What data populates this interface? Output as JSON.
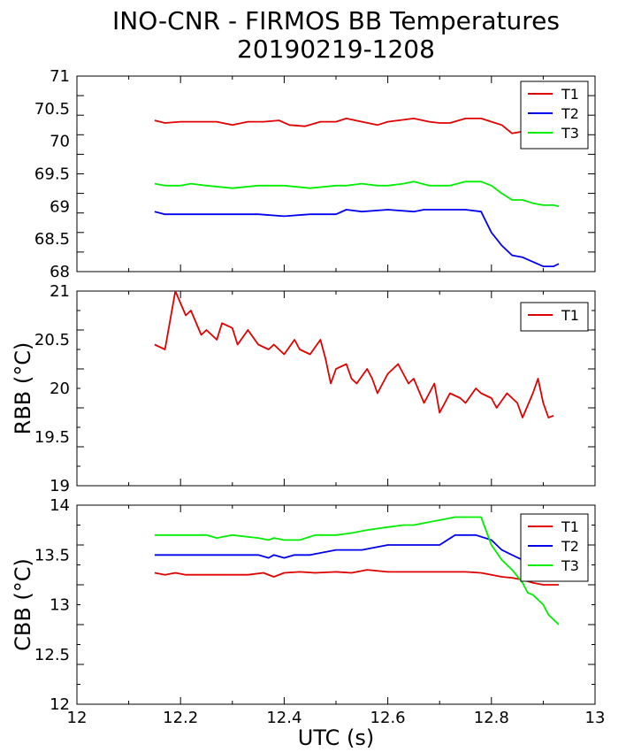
{
  "figure": {
    "title": "INO-CNR - FIRMOS BB Temperatures",
    "subtitle": "20190219-1208"
  },
  "chart_data": [
    {
      "type": "line",
      "xlim": [
        12,
        13
      ],
      "ylim": [
        68,
        71
      ],
      "ylabel": "",
      "y_ticks": [
        "68",
        "68.5",
        "69",
        "69.5",
        "70",
        "70.5",
        "71"
      ],
      "legend": "top-right",
      "series": [
        {
          "name": "T1",
          "color": "#e00000",
          "x": [
            12.15,
            12.17,
            12.2,
            12.22,
            12.25,
            12.27,
            12.3,
            12.33,
            12.36,
            12.39,
            12.41,
            12.44,
            12.47,
            12.5,
            12.52,
            12.55,
            12.58,
            12.6,
            12.62,
            12.65,
            12.68,
            12.7,
            12.72,
            12.75,
            12.78,
            12.8,
            12.82,
            12.84,
            12.86,
            12.88,
            12.9,
            12.92,
            12.93
          ],
          "y": [
            70.32,
            70.28,
            70.3,
            70.3,
            70.3,
            70.3,
            70.25,
            70.3,
            70.3,
            70.32,
            70.25,
            70.23,
            70.3,
            70.3,
            70.35,
            70.3,
            70.25,
            70.3,
            70.32,
            70.35,
            70.3,
            70.28,
            70.28,
            70.35,
            70.35,
            70.3,
            70.25,
            70.12,
            70.15,
            70.12,
            70.15,
            70.2,
            70.28
          ]
        },
        {
          "name": "T2",
          "color": "#0000ee",
          "x": [
            12.15,
            12.17,
            12.2,
            12.25,
            12.3,
            12.35,
            12.4,
            12.45,
            12.5,
            12.52,
            12.55,
            12.6,
            12.65,
            12.67,
            12.7,
            12.75,
            12.78,
            12.8,
            12.82,
            12.84,
            12.86,
            12.88,
            12.9,
            12.92,
            12.93
          ],
          "y": [
            68.92,
            68.88,
            68.88,
            68.88,
            68.88,
            68.88,
            68.85,
            68.88,
            68.88,
            68.95,
            68.92,
            68.95,
            68.92,
            68.95,
            68.95,
            68.95,
            68.92,
            68.6,
            68.4,
            68.25,
            68.22,
            68.15,
            68.08,
            68.08,
            68.12
          ]
        },
        {
          "name": "T3",
          "color": "#00ee00",
          "x": [
            12.15,
            12.17,
            12.2,
            12.22,
            12.25,
            12.3,
            12.35,
            12.4,
            12.45,
            12.5,
            12.52,
            12.55,
            12.58,
            12.6,
            12.63,
            12.65,
            12.68,
            12.7,
            12.72,
            12.75,
            12.78,
            12.8,
            12.82,
            12.84,
            12.86,
            12.88,
            12.9,
            12.92,
            12.93
          ],
          "y": [
            69.35,
            69.32,
            69.32,
            69.35,
            69.32,
            69.28,
            69.32,
            69.32,
            69.28,
            69.32,
            69.32,
            69.35,
            69.32,
            69.32,
            69.35,
            69.38,
            69.32,
            69.32,
            69.32,
            69.38,
            69.38,
            69.32,
            69.2,
            69.1,
            69.1,
            69.05,
            69.02,
            69.02,
            69.0
          ]
        }
      ]
    },
    {
      "type": "line",
      "xlim": [
        12,
        13
      ],
      "ylim": [
        19,
        21
      ],
      "ylabel": "RBB (°C)",
      "y_ticks": [
        "19",
        "19.5",
        "20",
        "20.5",
        "21"
      ],
      "legend": "top-right",
      "series": [
        {
          "name": "T1",
          "color": "#e00000",
          "x": [
            12.15,
            12.17,
            12.19,
            12.21,
            12.22,
            12.24,
            12.25,
            12.27,
            12.28,
            12.3,
            12.31,
            12.33,
            12.35,
            12.37,
            12.38,
            12.4,
            12.42,
            12.43,
            12.45,
            12.47,
            12.48,
            12.49,
            12.5,
            12.52,
            12.53,
            12.54,
            12.56,
            12.57,
            12.58,
            12.6,
            12.62,
            12.64,
            12.65,
            12.67,
            12.69,
            12.7,
            12.72,
            12.74,
            12.75,
            12.77,
            12.78,
            12.8,
            12.81,
            12.83,
            12.85,
            12.86,
            12.88,
            12.89,
            12.9,
            12.91,
            12.92
          ],
          "y": [
            20.45,
            20.4,
            21.0,
            20.75,
            20.8,
            20.55,
            20.6,
            20.5,
            20.67,
            20.62,
            20.45,
            20.6,
            20.45,
            20.4,
            20.45,
            20.35,
            20.5,
            20.4,
            20.35,
            20.5,
            20.3,
            20.05,
            20.2,
            20.25,
            20.1,
            20.05,
            20.2,
            20.1,
            19.95,
            20.15,
            20.25,
            20.05,
            20.1,
            19.85,
            20.05,
            19.75,
            19.95,
            19.9,
            19.85,
            20.0,
            19.95,
            19.9,
            19.8,
            19.95,
            19.85,
            19.7,
            19.95,
            20.1,
            19.85,
            19.7,
            19.72
          ]
        }
      ]
    },
    {
      "type": "line",
      "xlim": [
        12,
        13
      ],
      "ylim": [
        12,
        14
      ],
      "xlabel": "UTC (s)",
      "ylabel": "CBB (°C)",
      "x_ticks": [
        "12",
        "12.2",
        "12.4",
        "12.6",
        "12.8",
        "13"
      ],
      "y_ticks": [
        "12",
        "12.5",
        "13",
        "13.5",
        "14"
      ],
      "legend": "top-right",
      "series": [
        {
          "name": "T1",
          "color": "#e00000",
          "x": [
            12.15,
            12.17,
            12.19,
            12.21,
            12.25,
            12.3,
            12.33,
            12.36,
            12.38,
            12.4,
            12.43,
            12.46,
            12.5,
            12.53,
            12.56,
            12.6,
            12.65,
            12.7,
            12.75,
            12.78,
            12.8,
            12.82,
            12.84,
            12.86,
            12.88,
            12.9,
            12.92,
            12.93
          ],
          "y": [
            13.32,
            13.3,
            13.32,
            13.3,
            13.3,
            13.3,
            13.3,
            13.32,
            13.28,
            13.32,
            13.33,
            13.32,
            13.33,
            13.32,
            13.35,
            13.33,
            13.33,
            13.33,
            13.33,
            13.32,
            13.3,
            13.28,
            13.27,
            13.25,
            13.22,
            13.2,
            13.2,
            13.2
          ]
        },
        {
          "name": "T2",
          "color": "#0000ee",
          "x": [
            12.15,
            12.2,
            12.25,
            12.3,
            12.35,
            12.37,
            12.38,
            12.4,
            12.42,
            12.45,
            12.5,
            12.55,
            12.6,
            12.65,
            12.7,
            12.73,
            12.75,
            12.77,
            12.8,
            12.82,
            12.84,
            12.86,
            12.88,
            12.9,
            12.92,
            12.93
          ],
          "y": [
            13.5,
            13.5,
            13.5,
            13.5,
            13.5,
            13.47,
            13.5,
            13.47,
            13.5,
            13.5,
            13.55,
            13.55,
            13.6,
            13.6,
            13.6,
            13.7,
            13.7,
            13.7,
            13.65,
            13.55,
            13.5,
            13.45,
            13.4,
            13.35,
            13.3,
            13.28
          ]
        },
        {
          "name": "T3",
          "color": "#00ee00",
          "x": [
            12.15,
            12.2,
            12.25,
            12.27,
            12.3,
            12.35,
            12.37,
            12.38,
            12.4,
            12.43,
            12.46,
            12.5,
            12.53,
            12.56,
            12.6,
            12.63,
            12.65,
            12.7,
            12.73,
            12.75,
            12.78,
            12.8,
            12.82,
            12.84,
            12.86,
            12.87,
            12.88,
            12.89,
            12.9,
            12.91,
            12.92,
            12.93
          ],
          "y": [
            13.7,
            13.7,
            13.7,
            13.67,
            13.7,
            13.67,
            13.65,
            13.67,
            13.65,
            13.65,
            13.7,
            13.7,
            13.72,
            13.75,
            13.78,
            13.8,
            13.8,
            13.85,
            13.88,
            13.88,
            13.88,
            13.6,
            13.45,
            13.35,
            13.22,
            13.12,
            13.1,
            13.05,
            13.0,
            12.9,
            12.85,
            12.8
          ]
        }
      ]
    }
  ]
}
